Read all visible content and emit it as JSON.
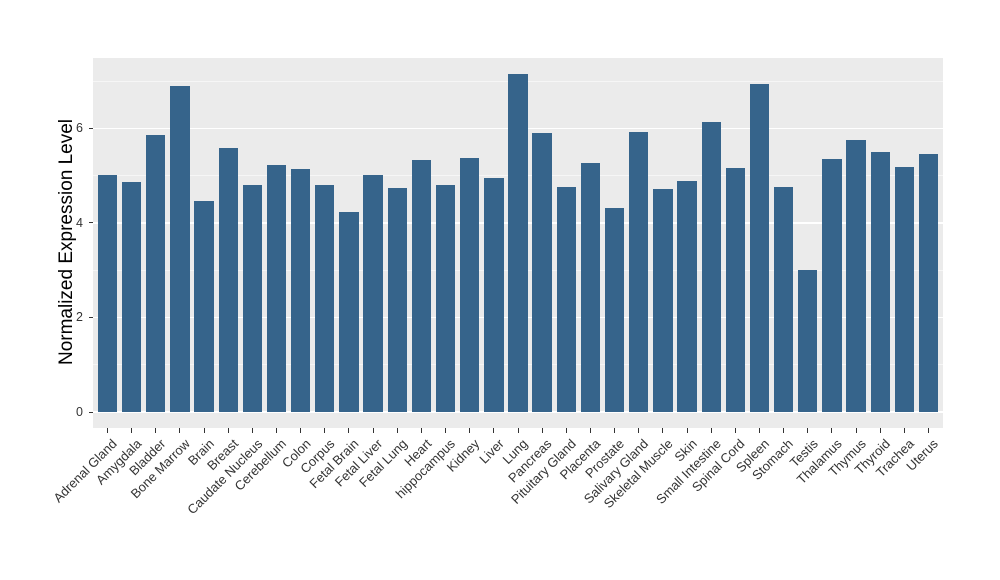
{
  "chart_data": {
    "type": "bar",
    "title": "",
    "xlabel": "",
    "ylabel": "Normalized Expression Level",
    "categories": [
      "Adrenal Gland",
      "Amygdala",
      "Bladder",
      "Bone Marrow",
      "Brain",
      "Breast",
      "Caudate Nucleus",
      "Cerebellum",
      "Colon",
      "Corpus",
      "Fetal Brain",
      "Fetal Liver",
      "Fetal Lung",
      "Heart",
      "hippocampus",
      "Kidney",
      "Liver",
      "Lung",
      "Pancreas",
      "Pituitary Gland",
      "Placenta",
      "Prostate",
      "Salivary Gland",
      "Skeletal Muscle",
      "Skin",
      "Small Intestine",
      "Spinal Cord",
      "Spleen",
      "Stomach",
      "Testis",
      "Thalamus",
      "Thymus",
      "Thyroid",
      "Trachea",
      "Uterus"
    ],
    "values": [
      5.01,
      4.87,
      5.86,
      6.9,
      4.46,
      5.58,
      4.8,
      5.23,
      5.14,
      4.8,
      4.24,
      5.02,
      4.74,
      5.33,
      4.8,
      5.38,
      4.96,
      7.15,
      5.91,
      4.76,
      5.26,
      4.32,
      5.93,
      4.71,
      4.89,
      6.14,
      5.16,
      6.93,
      4.77,
      3.0,
      5.35,
      5.76,
      5.49,
      5.18,
      5.46
    ],
    "yticks_major": [
      0,
      2,
      4,
      6
    ],
    "yticks_minor": [
      1,
      3,
      5,
      7
    ],
    "ylim": [
      0,
      7.5
    ],
    "x_label_rotation_deg": 45,
    "grid": "on",
    "legend_position": "none",
    "colors": {
      "bar": "#36648B",
      "panel_background": "#EBEBEB",
      "gridline": "#FFFFFF",
      "axis_text": "#333333",
      "axis_title": "#000000",
      "tick_mark": "#333333",
      "figure_background": "#FFFFFF"
    }
  }
}
